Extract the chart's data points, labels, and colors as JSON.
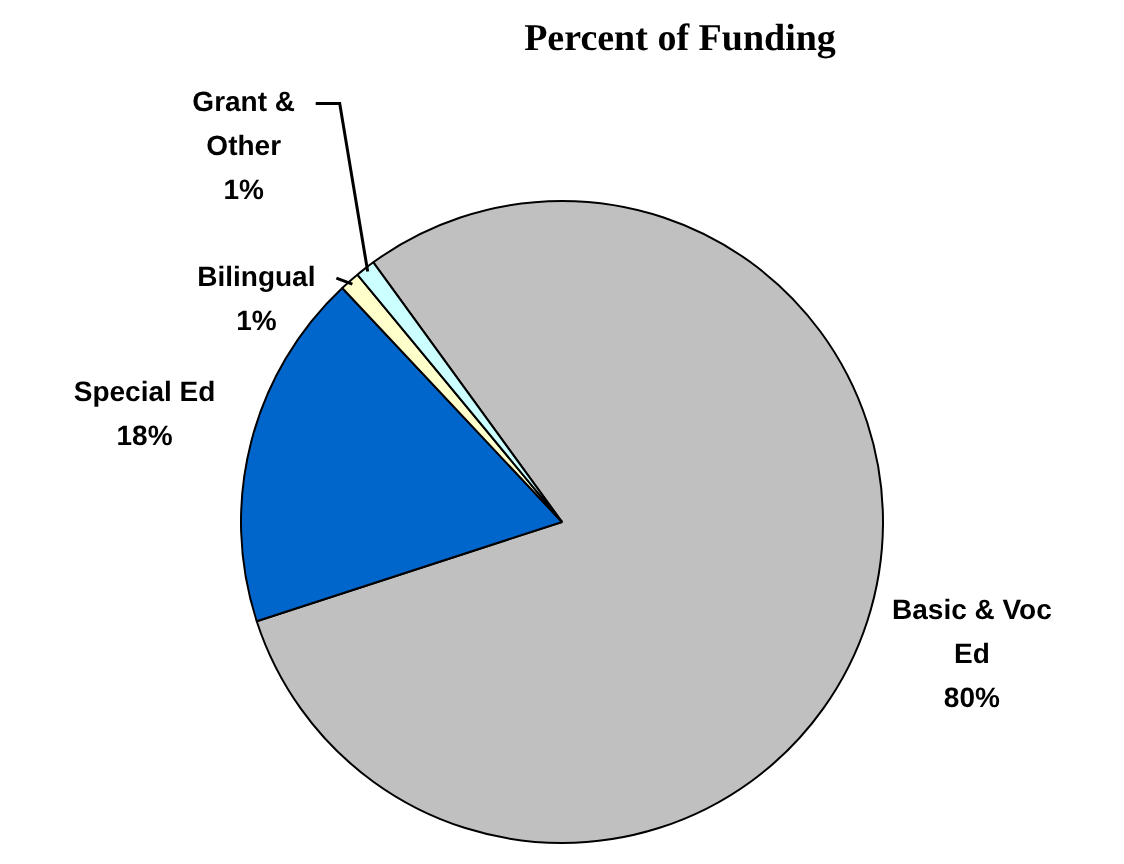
{
  "chart_data": {
    "type": "pie",
    "title": "Percent of Funding",
    "categories": [
      "Basic & Voc Ed",
      "Special Ed",
      "Bilingual",
      "Grant & Other"
    ],
    "values": [
      80,
      18,
      1,
      1
    ],
    "colors": [
      "#c0c0c0",
      "#0066cc",
      "#ffffcc",
      "#ccffff"
    ],
    "value_labels": [
      "80%",
      "18%",
      "1%",
      "1%"
    ],
    "legend": false
  }
}
